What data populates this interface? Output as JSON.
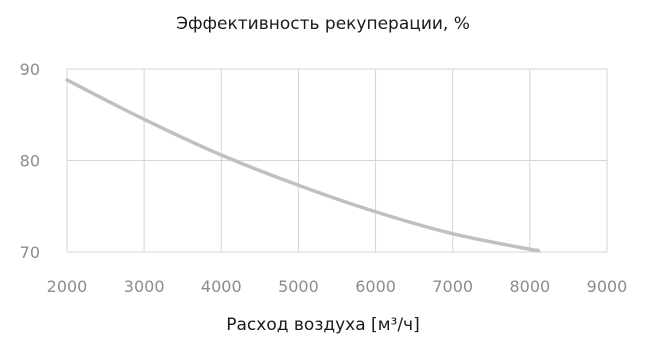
{
  "chart_data": {
    "type": "line",
    "title": "Эффективность рекуперации, %",
    "xlabel": "Расход воздуха [м³/ч]",
    "ylabel": "",
    "xlim": [
      2000,
      9000
    ],
    "ylim": [
      70,
      90
    ],
    "x_ticks": [
      2000,
      3000,
      4000,
      5000,
      6000,
      7000,
      8000,
      9000
    ],
    "y_ticks": [
      70,
      80,
      90
    ],
    "grid": true,
    "series": [
      {
        "x": [
          2000,
          3000,
          4000,
          5000,
          6000,
          7000,
          8000,
          8100
        ],
        "y": [
          88.8,
          84.5,
          80.6,
          77.3,
          74.4,
          72.0,
          70.3,
          70.2
        ]
      }
    ]
  },
  "colors": {
    "line": "#c0c0c0",
    "grid": "#d6d6d6",
    "tick_label": "#8c8c8c",
    "text": "#1a1a1a"
  }
}
